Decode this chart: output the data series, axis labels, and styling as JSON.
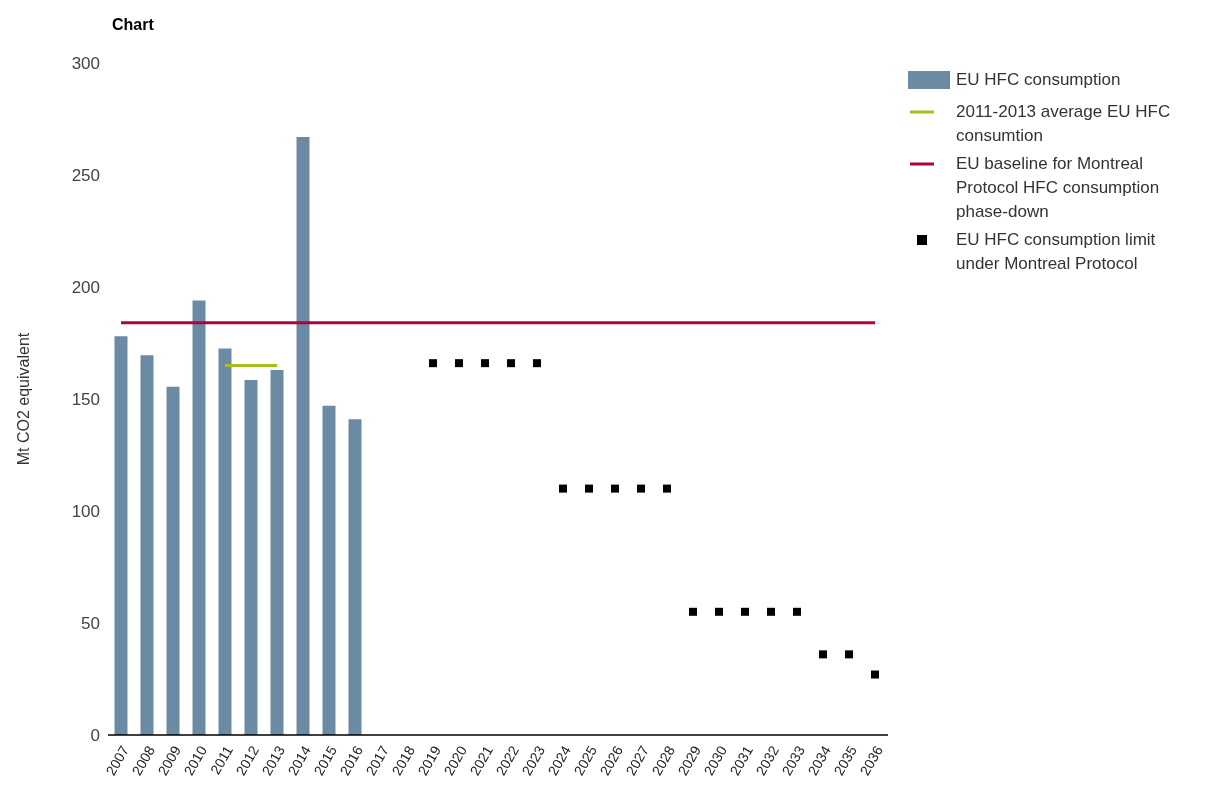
{
  "chart_data": {
    "type": "bar",
    "title": "Chart",
    "ylabel": "Mt CO2 equivalent",
    "categories": [
      "2007",
      "2008",
      "2009",
      "2010",
      "2011",
      "2012",
      "2013",
      "2014",
      "2015",
      "2016",
      "2017",
      "2018",
      "2019",
      "2020",
      "2021",
      "2022",
      "2023",
      "2024",
      "2025",
      "2026",
      "2027",
      "2028",
      "2029",
      "2030",
      "2031",
      "2032",
      "2033",
      "2034",
      "2035",
      "2036"
    ],
    "series": [
      {
        "name": "EU HFC consumption",
        "color": "#6b8aa3",
        "values": [
          178,
          169.5,
          155.5,
          194,
          172.5,
          158.5,
          163,
          267,
          147,
          141,
          null,
          null,
          null,
          null,
          null,
          null,
          null,
          null,
          null,
          null,
          null,
          null,
          null,
          null,
          null,
          null,
          null,
          null,
          null,
          null
        ]
      },
      {
        "name": "2011-2013 average EU HFC consumtion",
        "type": "line",
        "color": "#a9bd1f",
        "values": [
          null,
          null,
          null,
          null,
          165,
          165,
          165,
          null,
          null,
          null,
          null,
          null,
          null,
          null,
          null,
          null,
          null,
          null,
          null,
          null,
          null,
          null,
          null,
          null,
          null,
          null,
          null,
          null,
          null,
          null
        ]
      },
      {
        "name": "EU baseline for Montreal Protocol HFC consumption phase-down",
        "type": "line",
        "color": "#b0003f",
        "values": [
          184,
          184,
          184,
          184,
          184,
          184,
          184,
          184,
          184,
          184,
          184,
          184,
          184,
          184,
          184,
          184,
          184,
          184,
          184,
          184,
          184,
          184,
          184,
          184,
          184,
          184,
          184,
          184,
          184,
          184
        ]
      },
      {
        "name": "EU HFC consumption limit under Montreal Protocol",
        "type": "scatter",
        "marker": "square",
        "color": "#000000",
        "values": [
          null,
          null,
          null,
          null,
          null,
          null,
          null,
          null,
          null,
          null,
          null,
          null,
          166,
          166,
          166,
          166,
          166,
          110,
          110,
          110,
          110,
          110,
          55,
          55,
          55,
          55,
          55,
          36,
          36,
          27
        ]
      }
    ],
    "ylim": [
      0,
      300
    ],
    "yticks": [
      0,
      50,
      100,
      150,
      200,
      250,
      300
    ],
    "legend": "top right"
  }
}
